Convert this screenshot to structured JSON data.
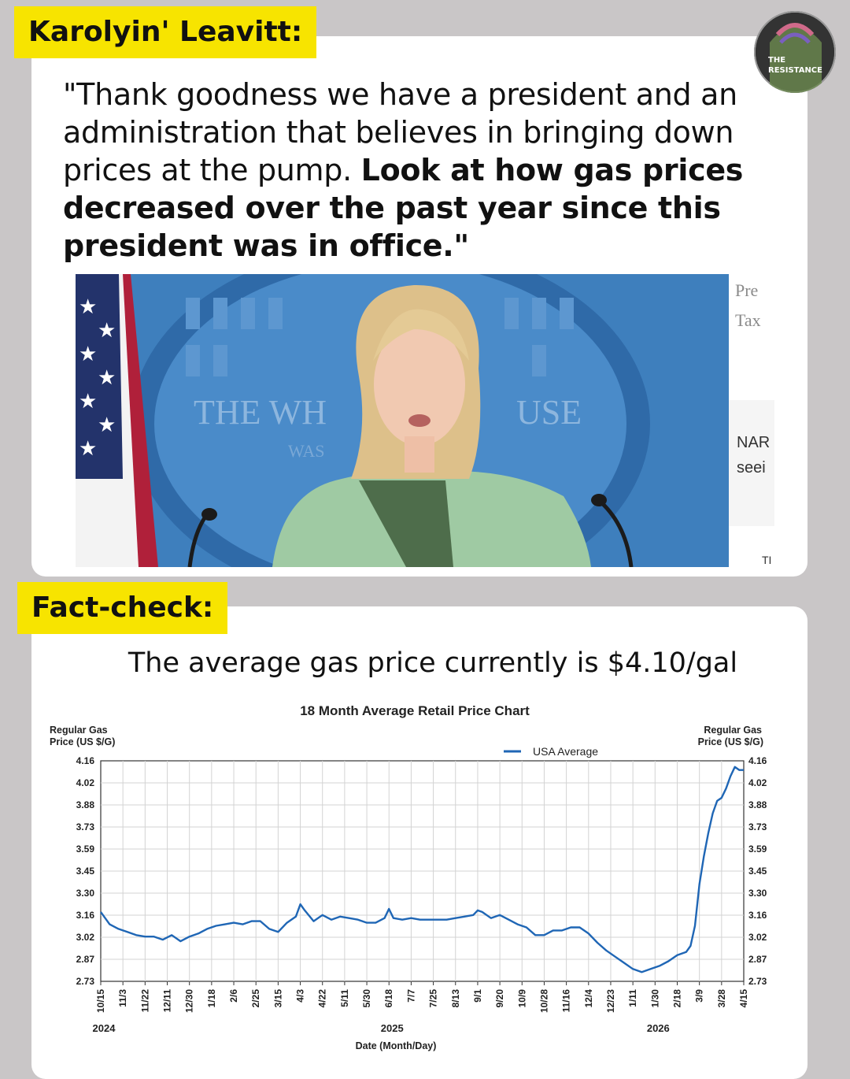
{
  "speaker_label": "Karolyin' Leavitt:",
  "quote": {
    "normal": "\"Thank goodness we have a president and an administration that believes in bringing down prices at the pump. ",
    "bold": "Look at how gas prices decreased over the past year since this president was in office.\""
  },
  "photo": {
    "backdrop_text": "THE WH",
    "backdrop_text2": "USE",
    "backdrop_text3": "WAS",
    "screen_lines": [
      "Pre",
      "Tax",
      "NAR",
      "seei",
      "TI"
    ]
  },
  "logo": {
    "line1": "THE",
    "line2": "RESISTANCE"
  },
  "factcheck_label": "Fact-check:",
  "fact_text": "The average gas price currently is $4.10/gal",
  "colors": {
    "tag": "#f7e400",
    "series": "#1f66b5",
    "background": "#c9c6c7"
  },
  "chart_data": {
    "type": "line",
    "title": "18 Month Average Retail Price Chart",
    "ylabel_left": [
      "Regular Gas",
      "Price (US $/G)"
    ],
    "ylabel_right": [
      "Regular Gas",
      "Price (US $/G)"
    ],
    "xlabel": "Date (Month/Day)",
    "legend": {
      "label": "USA Average",
      "position": "top-right"
    },
    "grid": true,
    "y_ticks": [
      "4.16",
      "4.02",
      "3.88",
      "3.73",
      "3.59",
      "3.45",
      "3.30",
      "3.16",
      "3.02",
      "2.87",
      "2.73"
    ],
    "ylim": [
      2.73,
      4.16
    ],
    "x_ticks": [
      "10/15",
      "11/3",
      "11/22",
      "12/11",
      "12/30",
      "1/18",
      "2/6",
      "2/25",
      "3/15",
      "4/3",
      "4/22",
      "5/11",
      "5/30",
      "6/18",
      "7/7",
      "7/25",
      "8/13",
      "9/1",
      "9/20",
      "10/9",
      "10/28",
      "11/16",
      "12/4",
      "12/23",
      "1/11",
      "1/30",
      "2/18",
      "3/9",
      "3/28",
      "4/15"
    ],
    "year_labels": [
      {
        "text": "2024",
        "at_tick": 0
      },
      {
        "text": "2025",
        "at_tick": 13
      },
      {
        "text": "2026",
        "at_tick": 25
      }
    ],
    "series": [
      {
        "name": "USA Average",
        "x_tick_pos": [
          0,
          0.4,
          0.8,
          1.2,
          1.6,
          2,
          2.4,
          2.8,
          3.2,
          3.6,
          4,
          4.4,
          4.8,
          5.2,
          5.6,
          6,
          6.4,
          6.8,
          7.2,
          7.6,
          8,
          8.4,
          8.8,
          9,
          9.2,
          9.6,
          10,
          10.4,
          10.8,
          11.2,
          11.6,
          12,
          12.4,
          12.8,
          13,
          13.2,
          13.6,
          14,
          14.4,
          14.8,
          15.2,
          15.6,
          16,
          16.4,
          16.8,
          17,
          17.2,
          17.6,
          18,
          18.4,
          18.8,
          19.2,
          19.6,
          20,
          20.4,
          20.8,
          21.2,
          21.6,
          22,
          22.4,
          22.8,
          23.2,
          23.6,
          24,
          24.4,
          24.8,
          25.2,
          25.6,
          26,
          26.4,
          26.6,
          26.8,
          27,
          27.2,
          27.4,
          27.6,
          27.8,
          28,
          28.2,
          28.4,
          28.6,
          28.8,
          29
        ],
        "values": [
          3.18,
          3.1,
          3.07,
          3.05,
          3.03,
          3.02,
          3.02,
          3.0,
          3.03,
          2.99,
          3.02,
          3.04,
          3.07,
          3.09,
          3.1,
          3.11,
          3.1,
          3.12,
          3.12,
          3.07,
          3.05,
          3.11,
          3.15,
          3.23,
          3.19,
          3.12,
          3.16,
          3.13,
          3.15,
          3.14,
          3.13,
          3.11,
          3.11,
          3.14,
          3.2,
          3.14,
          3.13,
          3.14,
          3.13,
          3.13,
          3.13,
          3.13,
          3.14,
          3.15,
          3.16,
          3.19,
          3.18,
          3.14,
          3.16,
          3.13,
          3.1,
          3.08,
          3.03,
          3.03,
          3.06,
          3.06,
          3.08,
          3.08,
          3.04,
          2.98,
          2.93,
          2.89,
          2.85,
          2.81,
          2.79,
          2.81,
          2.83,
          2.86,
          2.9,
          2.92,
          2.96,
          3.09,
          3.36,
          3.54,
          3.69,
          3.82,
          3.9,
          3.92,
          3.98,
          4.06,
          4.12,
          4.1,
          4.1
        ]
      }
    ]
  }
}
